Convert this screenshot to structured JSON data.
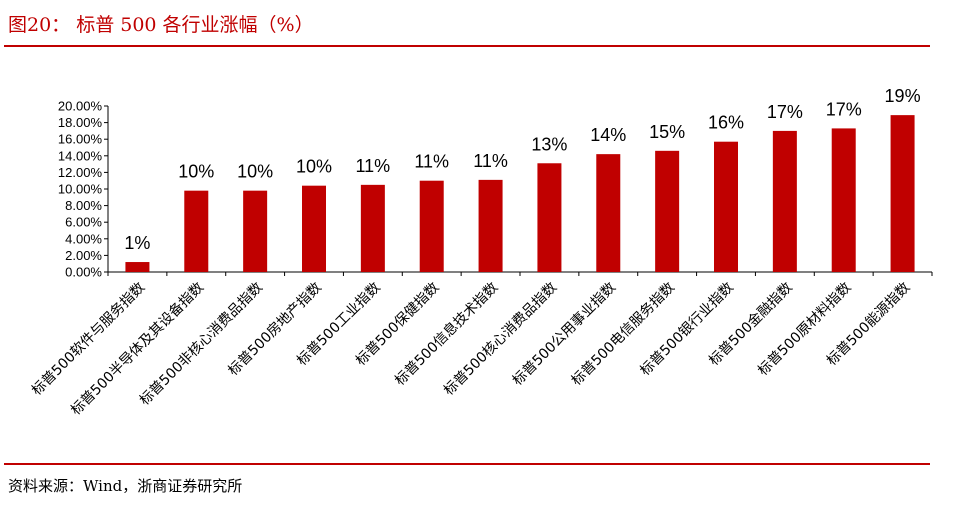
{
  "title": "图20：  标普 500 各行业涨幅（%）",
  "source": "资料来源：Wind，浙商证券研究所",
  "colors": {
    "accent": "#c00000",
    "bar": "#c00000",
    "axis": "#000000"
  },
  "chart_data": {
    "type": "bar",
    "categories": [
      "标普500软件与服务指数",
      "标普500半导体及其设备指数",
      "标普500非核心消费品指数",
      "标普500房地产指数",
      "标普500工业指数",
      "标普500保健指数",
      "标普500信息技术指数",
      "标普500核心消费品指数",
      "标普500公用事业指数",
      "标普500电信服务指数",
      "标普500银行业指数",
      "标普500金融指数",
      "标普500原材料指数",
      "标普500能源指数"
    ],
    "values": [
      1.2,
      9.8,
      9.8,
      10.4,
      10.5,
      11.0,
      11.1,
      13.1,
      14.2,
      14.6,
      15.7,
      17.0,
      17.3,
      18.9
    ],
    "data_labels": [
      "1%",
      "10%",
      "10%",
      "10%",
      "11%",
      "11%",
      "11%",
      "13%",
      "14%",
      "15%",
      "16%",
      "17%",
      "17%",
      "19%"
    ],
    "y_ticks": [
      "0.00%",
      "2.00%",
      "4.00%",
      "6.00%",
      "8.00%",
      "10.00%",
      "12.00%",
      "14.00%",
      "16.00%",
      "18.00%",
      "20.00%"
    ],
    "ylim": [
      0,
      20
    ],
    "xlabel": "",
    "ylabel": "",
    "grid": false,
    "legend": "none"
  }
}
